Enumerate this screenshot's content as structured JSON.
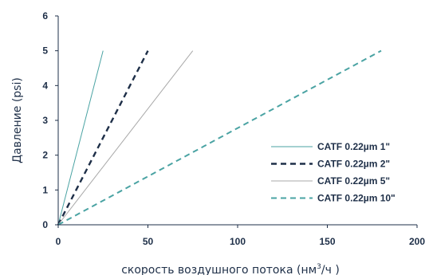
{
  "chart_data": {
    "type": "line",
    "xlabel_main": "скорость воздушного потока (нм",
    "xlabel_sup": "3",
    "xlabel_tail": "/ч )",
    "ylabel": "Давление (psi)",
    "xlim": [
      0,
      200
    ],
    "ylim": [
      0,
      6
    ],
    "x_ticks": [
      "0",
      "50",
      "100",
      "150",
      "200"
    ],
    "y_ticks": [
      "0",
      "1",
      "2",
      "3",
      "4",
      "5",
      "6"
    ],
    "grid": false,
    "legend_position": "right",
    "series": [
      {
        "name": "CATF 0.22µm 1\"",
        "x": [
          0,
          25
        ],
        "y": [
          0,
          5
        ],
        "color": "#4aa3a3",
        "style": "solid",
        "width": 1
      },
      {
        "name": "CATF 0.22µm 2\"",
        "x": [
          0,
          50
        ],
        "y": [
          0,
          5
        ],
        "color": "#1e2f48",
        "style": "dashed",
        "width": 2.4
      },
      {
        "name": "CATF 0.22µm 5\"",
        "x": [
          0,
          75
        ],
        "y": [
          0,
          5
        ],
        "color": "#a8a8a8",
        "style": "solid",
        "width": 1
      },
      {
        "name": "CATF 0.22µm 10\"",
        "x": [
          0,
          180
        ],
        "y": [
          0,
          5
        ],
        "color": "#4aa3a3",
        "style": "dashed",
        "width": 2
      }
    ]
  }
}
